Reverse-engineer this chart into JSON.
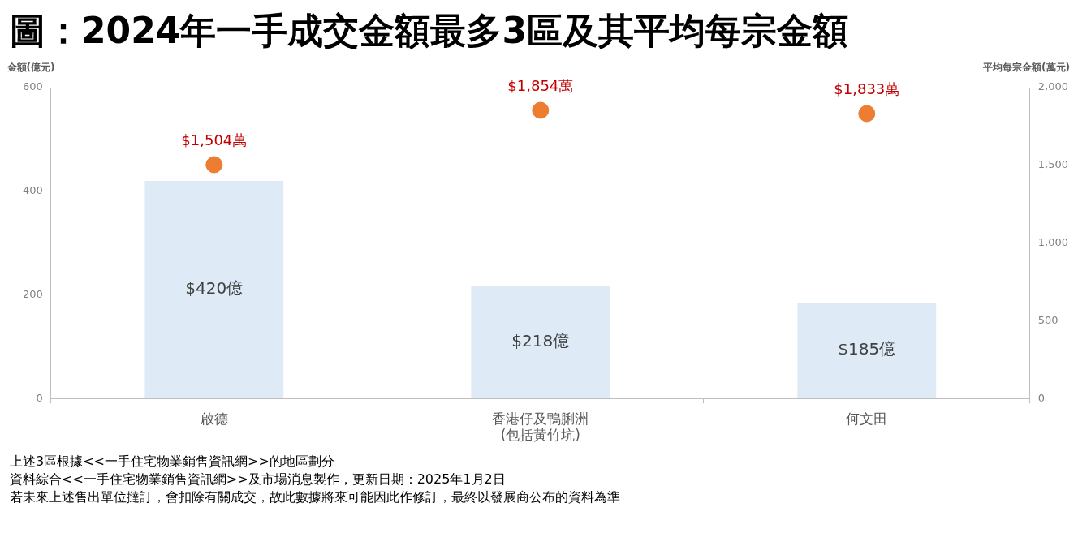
{
  "chart_data": {
    "type": "bar",
    "title": "圖：2024年一手成交金額最多3區及其平均每宗金額",
    "ylabel": "金額(億元)",
    "y2label": "平均每宗金額(萬元)",
    "categories": [
      "啟德",
      "香港仔及鴨脷洲\n(包括黃竹坑)",
      "何文田"
    ],
    "series": [
      {
        "color": "#deeaf6",
        "values": [
          420,
          218,
          185
        ],
        "value_labels": [
          "$420億",
          "$218億",
          "$185億"
        ]
      },
      {
        "type": "scatter",
        "axis": "y2",
        "color": "#ed7d31",
        "x": [
          "啟德",
          "香港仔及鴨脷洲\n(包括黃竹坑)",
          "何文田"
        ],
        "values": [
          1504,
          1854,
          1833
        ],
        "value_labels": [
          "$1,504萬",
          "$1,854萬",
          "$1,833萬"
        ]
      }
    ],
    "ylim": [
      0,
      600
    ],
    "yticks": [
      0,
      200,
      400,
      600
    ],
    "y2lim": [
      0,
      2000
    ],
    "y2ticks": [
      0,
      500,
      {
        "value": 1000,
        "label": "1,000"
      },
      {
        "value": 1500,
        "label": "1,500"
      },
      {
        "value": 2000,
        "label": "2,000"
      }
    ],
    "grid": false,
    "legend": false,
    "marker": "circle",
    "annotations": [
      "上述3區根據<<一手住宅物業銷售資訊網>>的地區劃分",
      "資料綜合<<一手住宅物業銷售資訊網>>及市場消息製作，更新日期：2025年1月2日",
      "若未來上述售出單位撻訂，會扣除有關成交，故此數據將來可能因此作修訂，最終以發展商公布的資料為準"
    ]
  }
}
